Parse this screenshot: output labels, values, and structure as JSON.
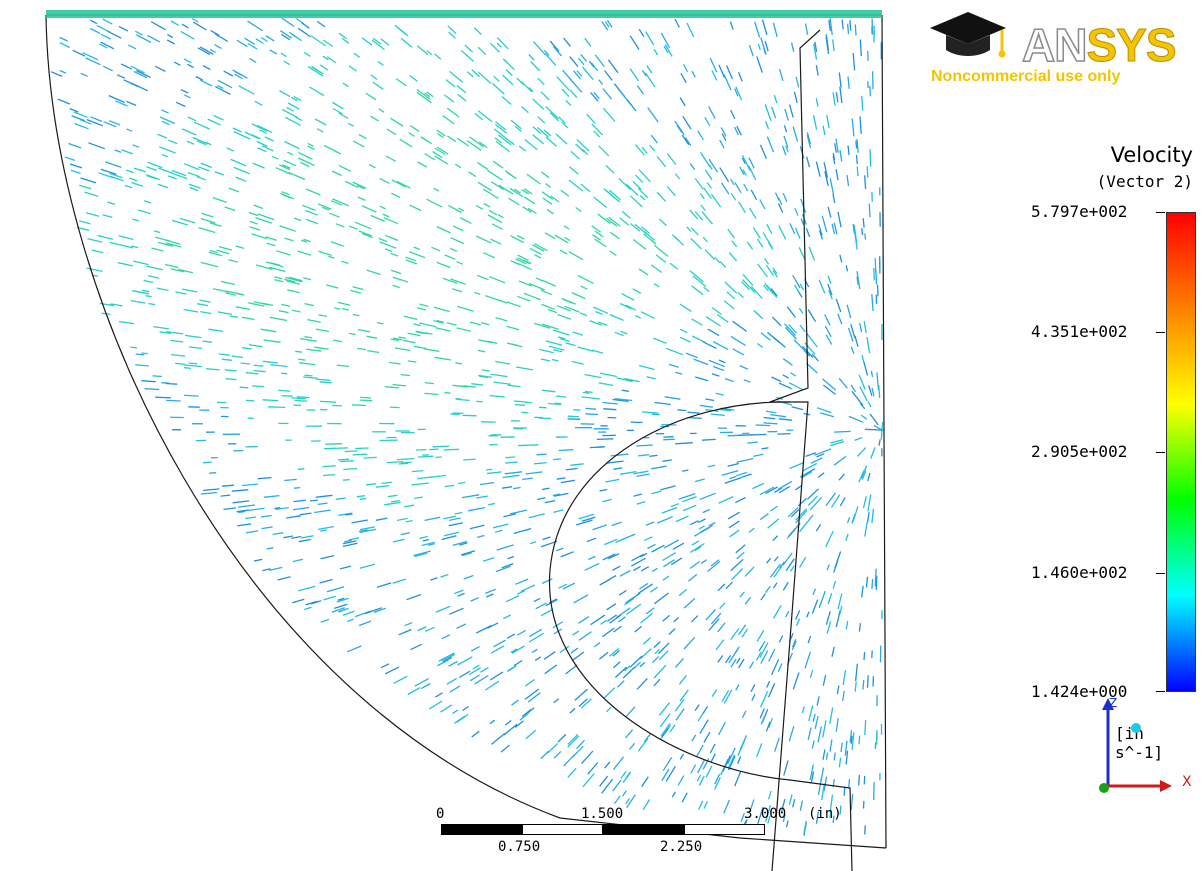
{
  "logo": {
    "brand_prefix": "AN",
    "brand_suffix": "SYS",
    "subtitle": "Noncommercial use only",
    "icon": "graduation-cap-icon"
  },
  "legend": {
    "title": "Velocity",
    "subtitle": "(Vector 2)",
    "ticks": [
      "5.797e+002",
      "4.351e+002",
      "2.905e+002",
      "1.460e+002",
      "1.424e+000"
    ],
    "units": "[in s^-1]",
    "colormap": [
      "#ff0000",
      "#ff8000",
      "#ffff00",
      "#00ff00",
      "#00ffff",
      "#0000ff"
    ]
  },
  "axes": {
    "z_label": "Z",
    "x_label": "X"
  },
  "scale_bar": {
    "top_labels": [
      "0",
      "1.500",
      "3.000"
    ],
    "unit": "(in)",
    "bottom_labels": [
      "0.750",
      "2.250"
    ]
  }
}
